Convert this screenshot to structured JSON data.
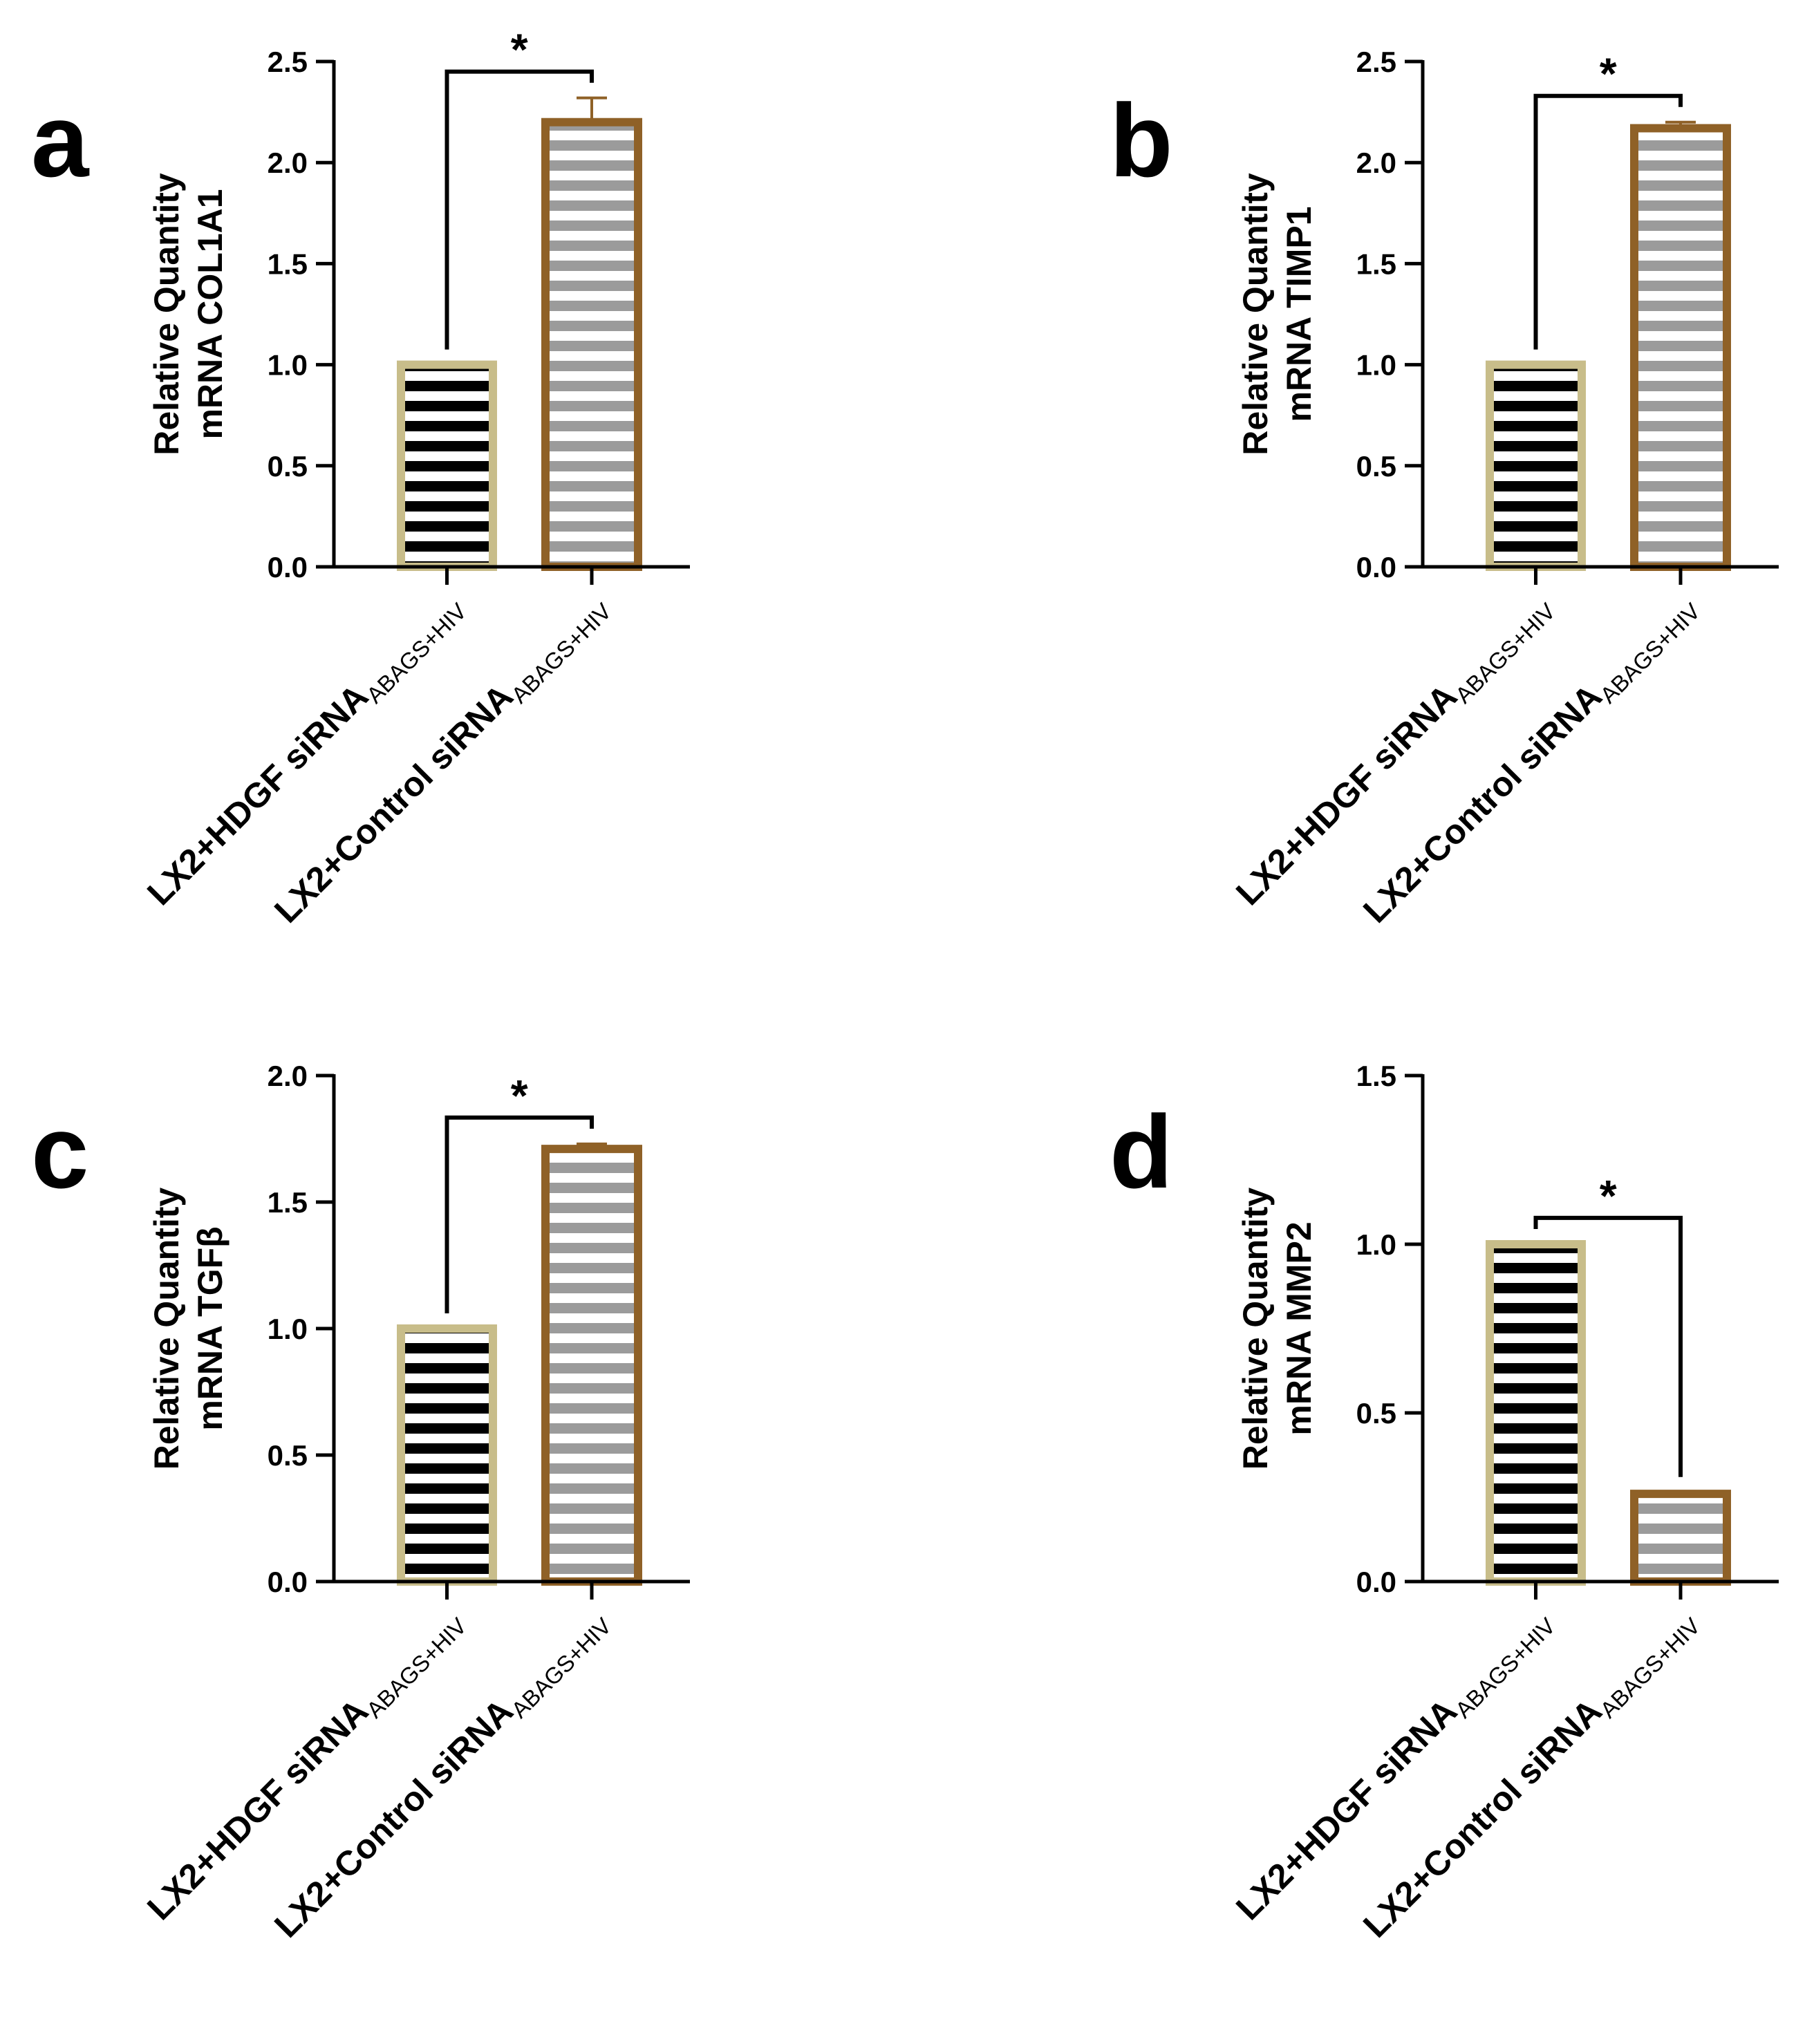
{
  "figure": {
    "colors": {
      "hdgf_border": "#c8bd8a",
      "hdgf_stripe": "#000000",
      "control_border": "#8f6127",
      "control_stripe": "#9b9b9b",
      "axis": "#000000",
      "significance": "#000000",
      "error_bar": "#8f6127"
    }
  },
  "chart_data": [
    {
      "panel": "a",
      "type": "bar",
      "ylabel_line1": "Relative Quantity",
      "ylabel_line2": "mRNA COL1A1",
      "ylim": [
        0,
        2.5
      ],
      "yticks": [
        "0.0",
        "0.5",
        "1.0",
        "1.5",
        "2.0",
        "2.5"
      ],
      "categories": [
        {
          "main": "LX2+HDGF siRNA",
          "sub": "ABAGS+HIV"
        },
        {
          "main": "LX2+Control siRNA",
          "sub": "ABAGS+HIV"
        }
      ],
      "values": [
        1.0,
        2.2
      ],
      "errors": [
        0,
        0.12
      ],
      "significance": "*"
    },
    {
      "panel": "b",
      "type": "bar",
      "ylabel_line1": "Relative Quantity",
      "ylabel_line2": "mRNA TIMP1",
      "ylim": [
        0,
        2.5
      ],
      "yticks": [
        "0.0",
        "0.5",
        "1.0",
        "1.5",
        "2.0",
        "2.5"
      ],
      "categories": [
        {
          "main": "LX2+HDGF siRNA",
          "sub": "ABAGS+HIV"
        },
        {
          "main": "LX2+Control siRNA",
          "sub": "ABAGS+HIV"
        }
      ],
      "values": [
        1.0,
        2.17
      ],
      "errors": [
        0,
        0.03
      ],
      "significance": "*"
    },
    {
      "panel": "c",
      "type": "bar",
      "ylabel_line1": "Relative Quantity",
      "ylabel_line2": "mRNA TGFβ",
      "ylim": [
        0,
        2.0
      ],
      "yticks": [
        "0.0",
        "0.5",
        "1.0",
        "1.5",
        "2.0"
      ],
      "categories": [
        {
          "main": "LX2+HDGF siRNA",
          "sub": "ABAGS+HIV"
        },
        {
          "main": "LX2+Control siRNA",
          "sub": "ABAGS+HIV"
        }
      ],
      "values": [
        1.0,
        1.71
      ],
      "errors": [
        0,
        0.02
      ],
      "significance": "*"
    },
    {
      "panel": "d",
      "type": "bar",
      "ylabel_line1": "Relative Quantity",
      "ylabel_line2": "mRNA MMP2",
      "ylim": [
        0,
        1.5
      ],
      "yticks": [
        "0.0",
        "0.5",
        "1.0",
        "1.5"
      ],
      "categories": [
        {
          "main": "LX2+HDGF siRNA",
          "sub": "ABAGS+HIV"
        },
        {
          "main": "LX2+Control siRNA",
          "sub": "ABAGS+HIV"
        }
      ],
      "values": [
        1.0,
        0.26
      ],
      "errors": [
        0,
        0.005
      ],
      "significance": "*"
    }
  ]
}
